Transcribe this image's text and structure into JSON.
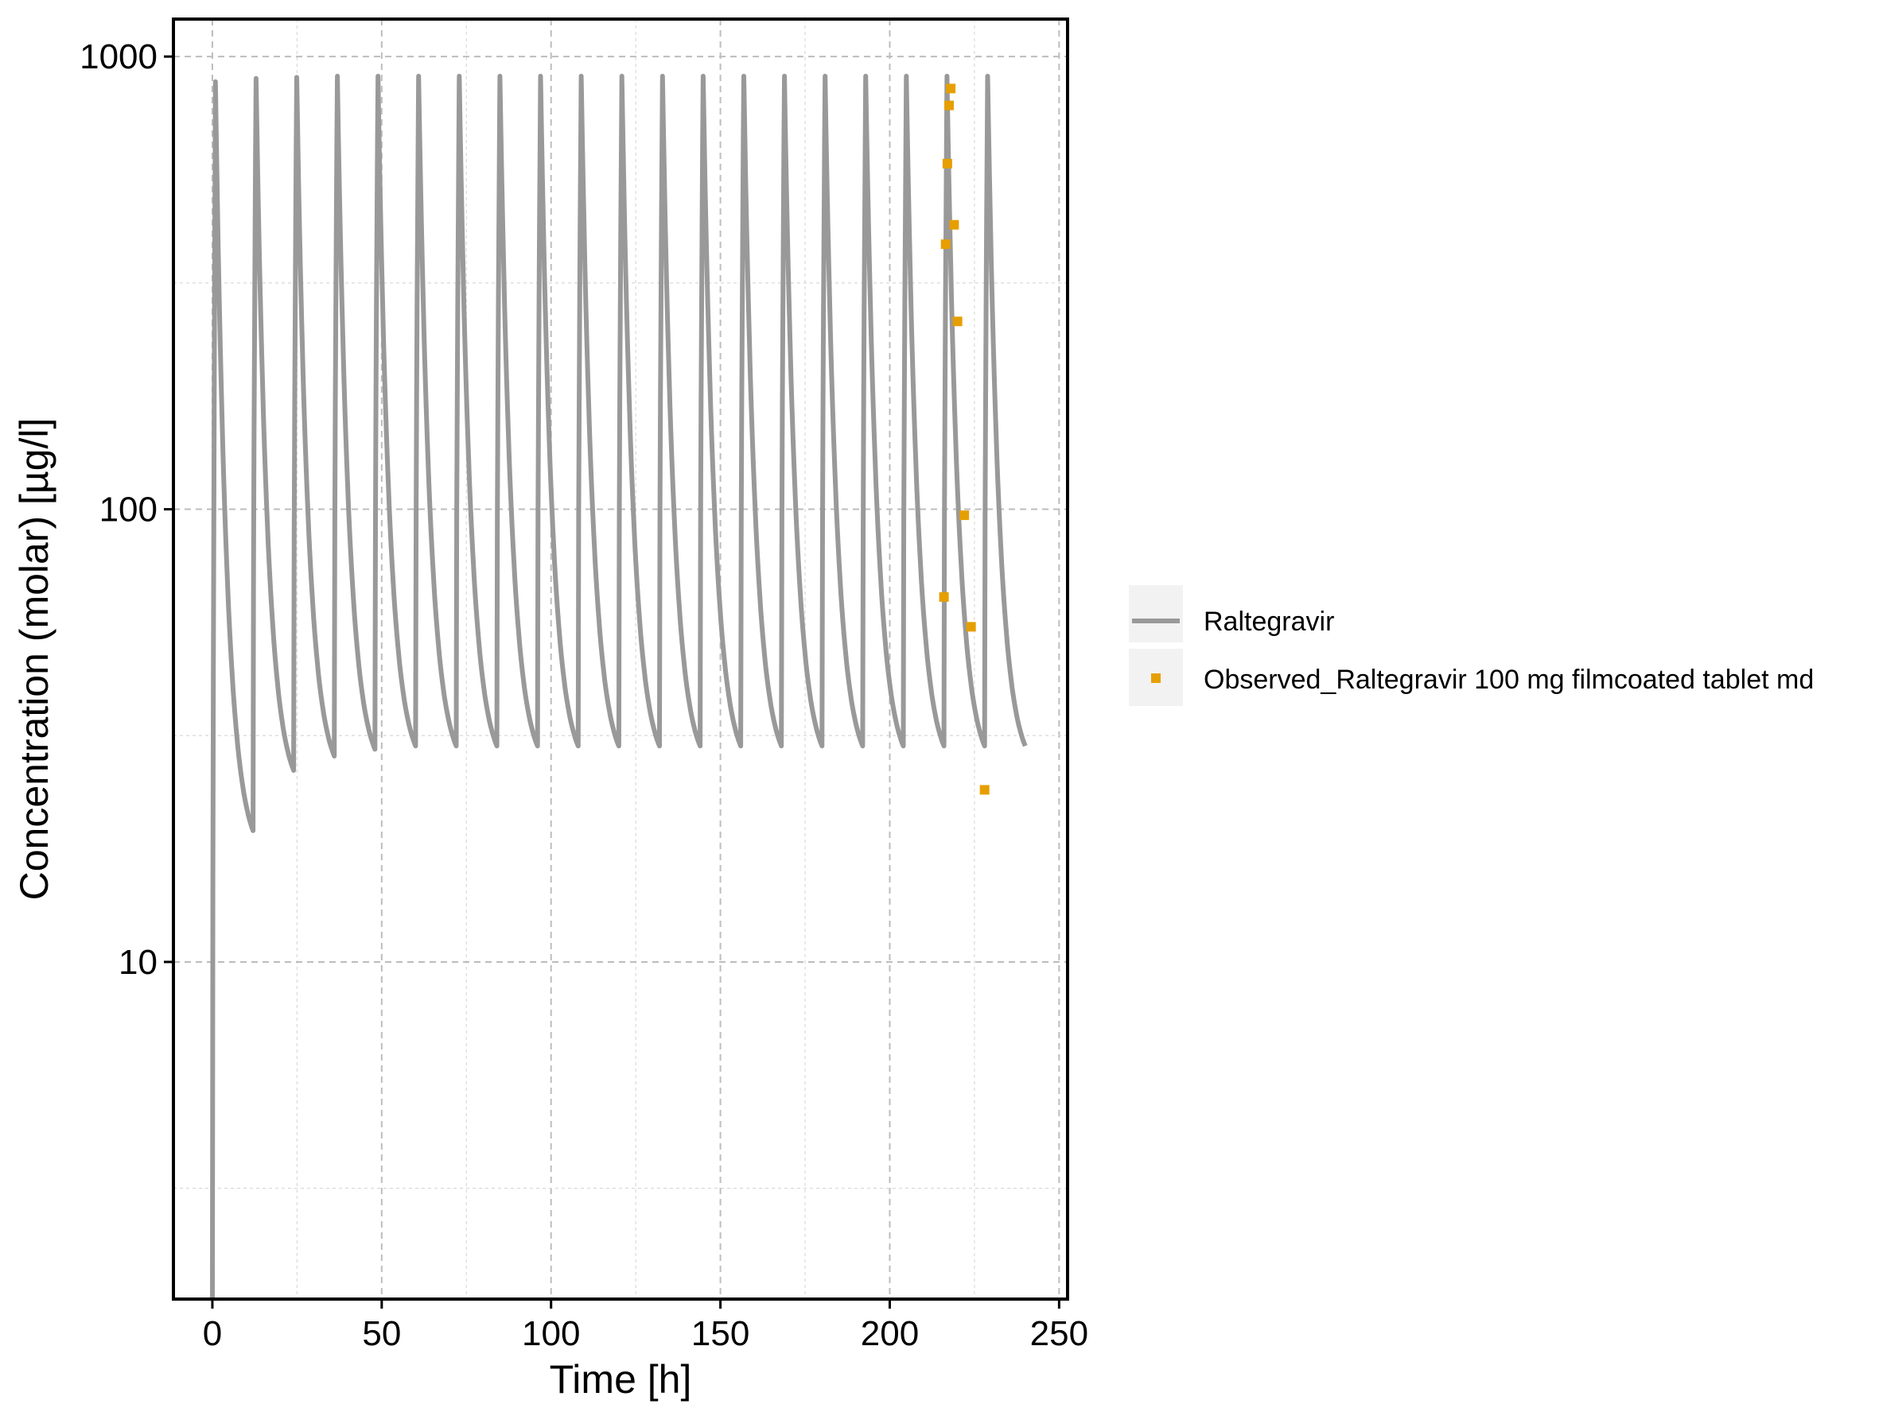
{
  "chart_data": {
    "type": "line",
    "title": "",
    "xlabel": "Time [h]",
    "ylabel": "Concentration (molar) [µg/l]",
    "xlim": [
      -11.5,
      252.5
    ],
    "ylim": [
      1.8,
      1210
    ],
    "yscale": "log",
    "x_ticks": [
      0,
      50,
      100,
      150,
      200,
      250
    ],
    "x_tick_labels": [
      "0",
      "50",
      "100",
      "150",
      "200",
      "250"
    ],
    "y_ticks": [
      10,
      100,
      1000
    ],
    "y_tick_labels": [
      "10",
      "100",
      "1000"
    ],
    "grid": true,
    "legend_position": "right",
    "dosing_interval_h": 12,
    "series": [
      {
        "name": "Raltegravir",
        "kind": "line",
        "color": "#999999",
        "dose_profile": [
          {
            "dose": 1,
            "t0": 0,
            "t1": 12,
            "peak": 880,
            "trough": 19.5
          },
          {
            "dose": 2,
            "t0": 12,
            "t1": 24,
            "peak": 895,
            "trough": 26.5
          },
          {
            "dose": 3,
            "t0": 24,
            "t1": 36,
            "peak": 900,
            "trough": 28.5
          },
          {
            "dose": 4,
            "t0": 36,
            "t1": 48,
            "peak": 905,
            "trough": 29.5
          },
          {
            "dose": 5,
            "t0": 48,
            "t1": 60,
            "peak": 905,
            "trough": 30
          },
          {
            "dose": 6,
            "t0": 60,
            "t1": 72,
            "peak": 905,
            "trough": 30
          },
          {
            "dose": 7,
            "t0": 72,
            "t1": 84,
            "peak": 905,
            "trough": 30
          },
          {
            "dose": 8,
            "t0": 84,
            "t1": 96,
            "peak": 905,
            "trough": 30
          },
          {
            "dose": 9,
            "t0": 96,
            "t1": 108,
            "peak": 905,
            "trough": 30
          },
          {
            "dose": 10,
            "t0": 108,
            "t1": 120,
            "peak": 905,
            "trough": 30
          },
          {
            "dose": 11,
            "t0": 120,
            "t1": 132,
            "peak": 905,
            "trough": 30
          },
          {
            "dose": 12,
            "t0": 132,
            "t1": 144,
            "peak": 905,
            "trough": 30
          },
          {
            "dose": 13,
            "t0": 144,
            "t1": 156,
            "peak": 905,
            "trough": 30
          },
          {
            "dose": 14,
            "t0": 156,
            "t1": 168,
            "peak": 905,
            "trough": 30
          },
          {
            "dose": 15,
            "t0": 168,
            "t1": 180,
            "peak": 905,
            "trough": 30
          },
          {
            "dose": 16,
            "t0": 180,
            "t1": 192,
            "peak": 905,
            "trough": 30
          },
          {
            "dose": 17,
            "t0": 192,
            "t1": 204,
            "peak": 905,
            "trough": 30
          },
          {
            "dose": 18,
            "t0": 204,
            "t1": 216,
            "peak": 905,
            "trough": 30
          },
          {
            "dose": 19,
            "t0": 216,
            "t1": 228,
            "peak": 905,
            "trough": 30
          },
          {
            "dose": 20,
            "t0": 228,
            "t1": 240,
            "peak": 905,
            "trough": 30
          }
        ]
      },
      {
        "name": "Observed_Raltegravir 100 mg filmcoated tablet md",
        "kind": "scatter",
        "color": "#E69F00",
        "points": [
          {
            "x": 216.0,
            "y": 64
          },
          {
            "x": 216.5,
            "y": 385
          },
          {
            "x": 217.0,
            "y": 580
          },
          {
            "x": 217.5,
            "y": 780
          },
          {
            "x": 218.0,
            "y": 850
          },
          {
            "x": 219.0,
            "y": 425
          },
          {
            "x": 220.0,
            "y": 260
          },
          {
            "x": 222.0,
            "y": 97
          },
          {
            "x": 224.0,
            "y": 55
          },
          {
            "x": 228.0,
            "y": 24
          }
        ]
      }
    ]
  }
}
